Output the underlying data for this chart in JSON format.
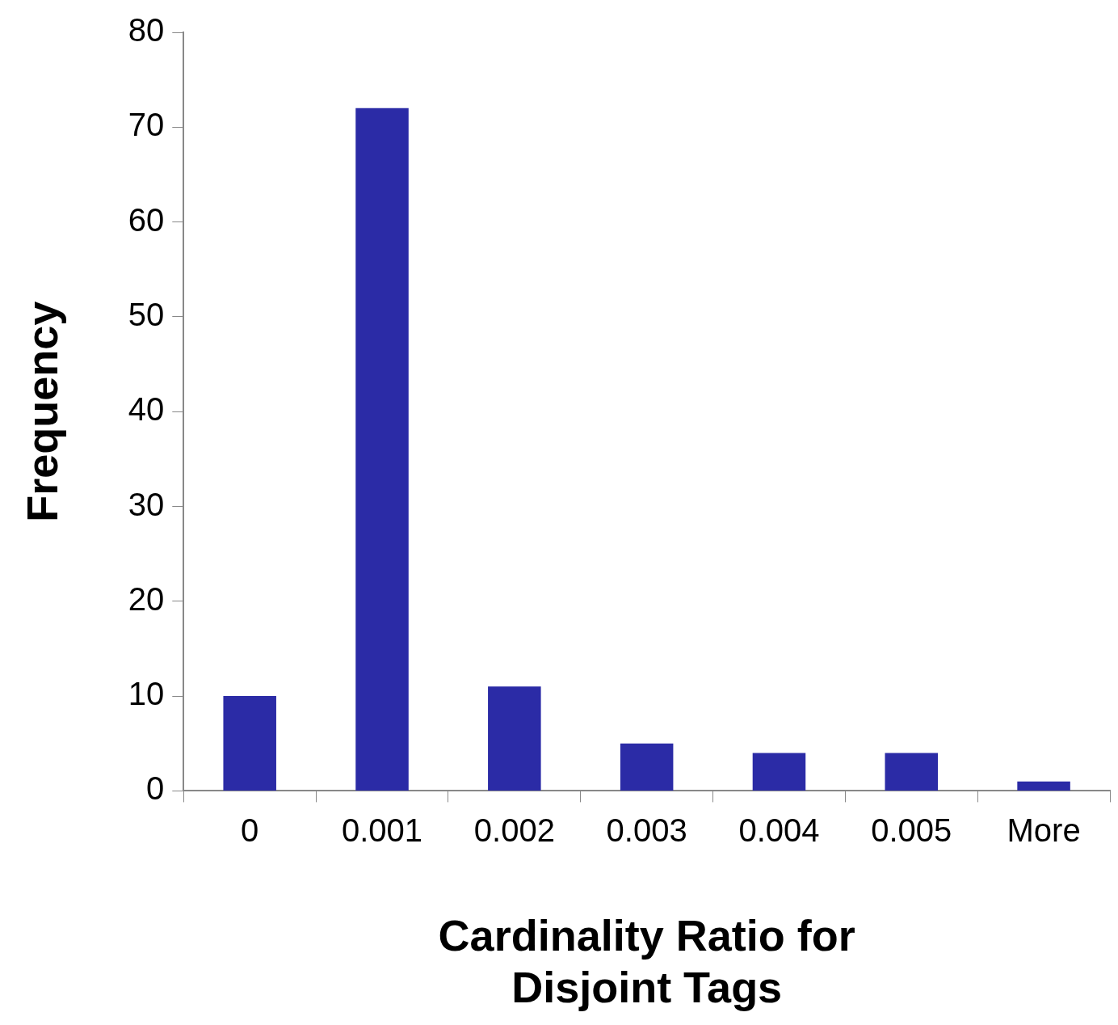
{
  "chart_data": {
    "type": "bar",
    "xlabel": "Cardinality Ratio for Disjoint Tags",
    "ylabel": "Frequency",
    "categories": [
      "0",
      "0.001",
      "0.002",
      "0.003",
      "0.004",
      "0.005",
      "More"
    ],
    "values": [
      10,
      72,
      11,
      5,
      4,
      4,
      1
    ],
    "color": "#2b2ba6",
    "ylim": [
      0,
      80
    ],
    "yticks": [
      0,
      10,
      20,
      30,
      40,
      50,
      60,
      70,
      80
    ],
    "grid": false,
    "legend": false
  }
}
